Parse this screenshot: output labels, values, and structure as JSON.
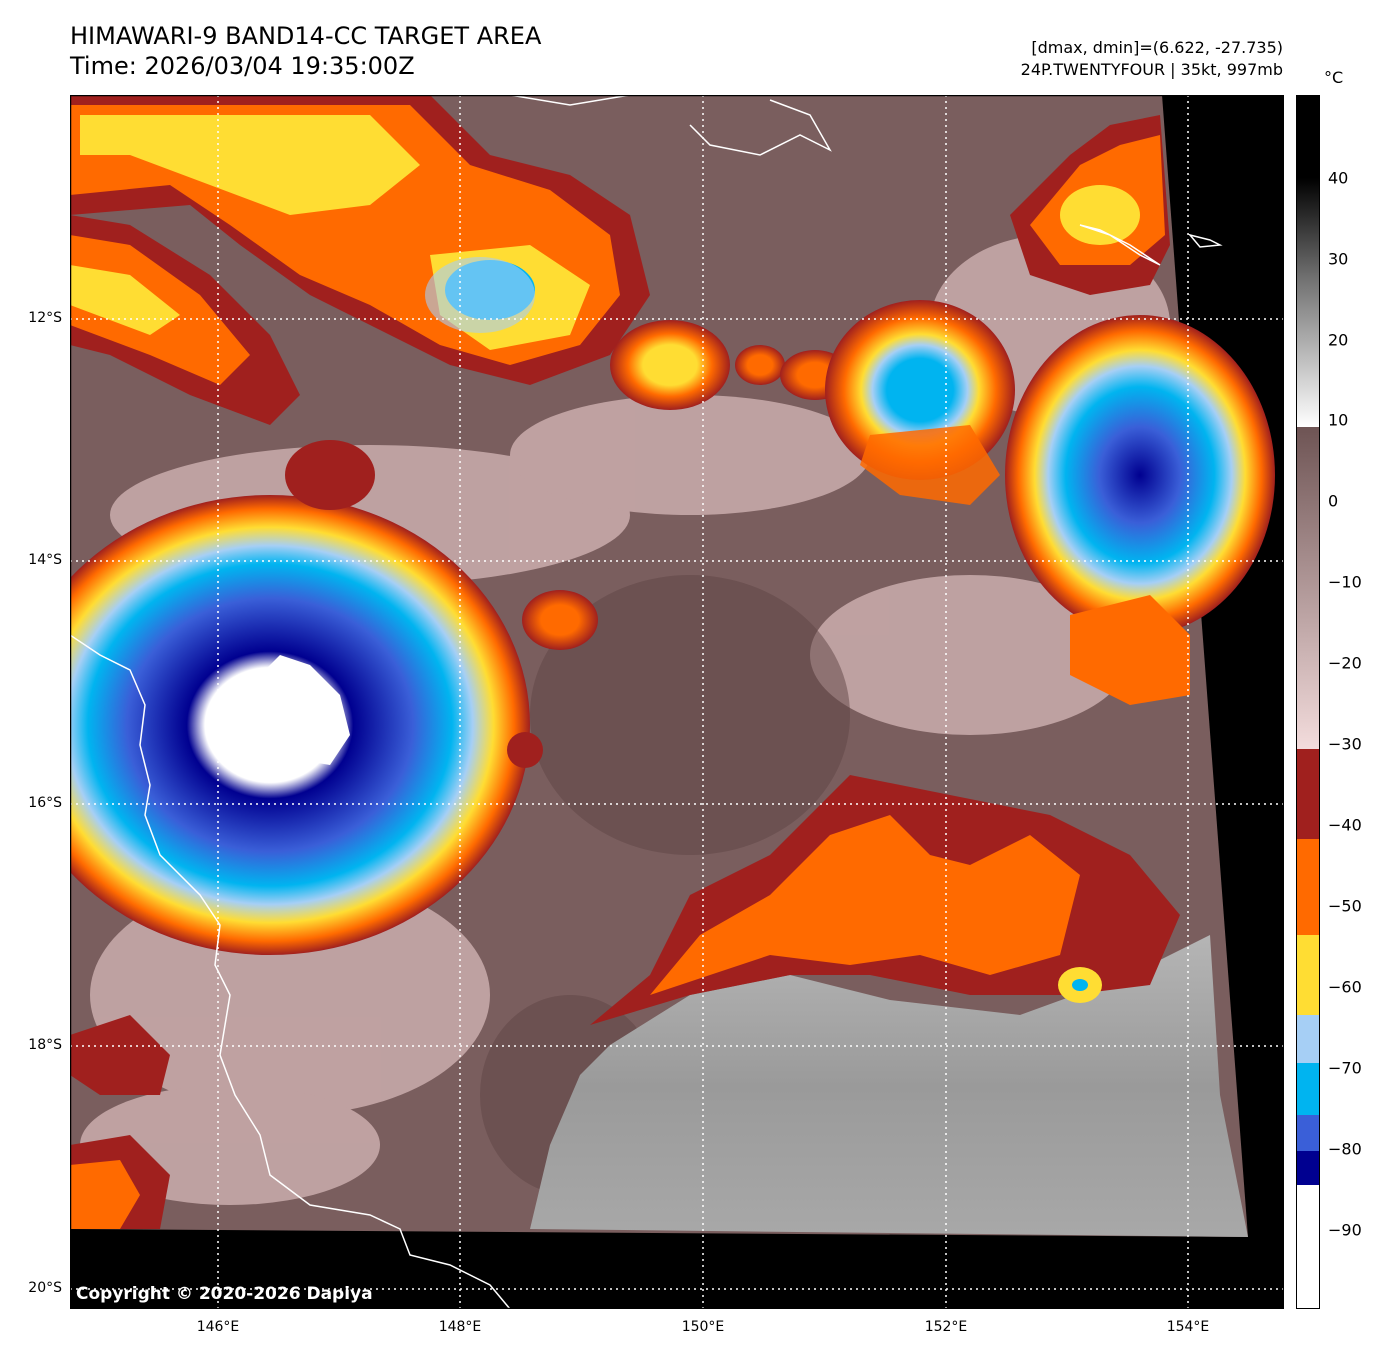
{
  "header": {
    "title_line1": "HIMAWARI-9 BAND14-CC TARGET AREA",
    "title_line2": "Time: 2026/03/04 19:35:00Z",
    "info_line1": "[dmax, dmin]=(6.622, -27.735)",
    "info_line2": "24P.TWENTYFOUR | 35kt, 997mb"
  },
  "map": {
    "lat_labels": [
      "12°S",
      "14°S",
      "16°S",
      "18°S",
      "20°S"
    ],
    "lon_labels": [
      "146°E",
      "148°E",
      "150°E",
      "152°E",
      "154°E"
    ],
    "copyright": "Copyright © 2020-2026 Dapiya"
  },
  "colorbar": {
    "unit": "°C",
    "ticks": [
      "40",
      "30",
      "20",
      "10",
      "0",
      "−10",
      "−20",
      "−30",
      "−40",
      "−50",
      "−60",
      "−70",
      "−80",
      "−90"
    ],
    "colors": {
      "black": "#000000",
      "gray_warm": "#6e5454",
      "pink": "#f0d6d6",
      "dark_red": "#a0201e",
      "orange": "#ff6a00",
      "yellow": "#ffdd33",
      "light_blue": "#a6cff5",
      "cyan": "#00b4f0",
      "blue": "#3a5fd8",
      "navy": "#000090",
      "white": "#ffffff"
    }
  }
}
